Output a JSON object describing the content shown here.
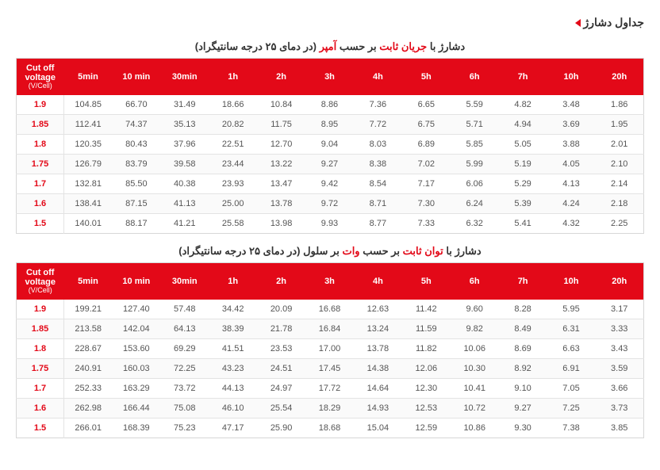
{
  "page_title": "جداول دشارژ",
  "caption1_parts": {
    "p1": "دشارژ با ",
    "p2": "جریان ثابت",
    "p3": " بر حسب ",
    "p4": "آمپر",
    "p5": "  (در دمای ۲۵ درجه سانتیگراد)"
  },
  "caption2_parts": {
    "p1": "دشارژ با ",
    "p2": "توان ثابت",
    "p3": " بر حسب ",
    "p4": "وات",
    "p5": " بر سلول (در دمای ۲۵ درجه سانتیگراد)"
  },
  "header": {
    "first_line1": "Cut off",
    "first_line2": "voltage",
    "first_sub": "(V/Cell)",
    "cols": [
      "5min",
      "10 min",
      "30min",
      "1h",
      "2h",
      "3h",
      "4h",
      "5h",
      "6h",
      "7h",
      "10h",
      "20h"
    ]
  },
  "table1_rows": [
    {
      "v": "1.9",
      "c": [
        "104.85",
        "66.70",
        "31.49",
        "18.66",
        "10.84",
        "8.86",
        "7.36",
        "6.65",
        "5.59",
        "4.82",
        "3.48",
        "1.86"
      ]
    },
    {
      "v": "1.85",
      "c": [
        "112.41",
        "74.37",
        "35.13",
        "20.82",
        "11.75",
        "8.95",
        "7.72",
        "6.75",
        "5.71",
        "4.94",
        "3.69",
        "1.95"
      ]
    },
    {
      "v": "1.8",
      "c": [
        "120.35",
        "80.43",
        "37.96",
        "22.51",
        "12.70",
        "9.04",
        "8.03",
        "6.89",
        "5.85",
        "5.05",
        "3.88",
        "2.01"
      ]
    },
    {
      "v": "1.75",
      "c": [
        "126.79",
        "83.79",
        "39.58",
        "23.44",
        "13.22",
        "9.27",
        "8.38",
        "7.02",
        "5.99",
        "5.19",
        "4.05",
        "2.10"
      ]
    },
    {
      "v": "1.7",
      "c": [
        "132.81",
        "85.50",
        "40.38",
        "23.93",
        "13.47",
        "9.42",
        "8.54",
        "7.17",
        "6.06",
        "5.29",
        "4.13",
        "2.14"
      ]
    },
    {
      "v": "1.6",
      "c": [
        "138.41",
        "87.15",
        "41.13",
        "25.00",
        "13.78",
        "9.72",
        "8.71",
        "7.30",
        "6.24",
        "5.39",
        "4.24",
        "2.18"
      ]
    },
    {
      "v": "1.5",
      "c": [
        "140.01",
        "88.17",
        "41.21",
        "25.58",
        "13.98",
        "9.93",
        "8.77",
        "7.33",
        "6.32",
        "5.41",
        "4.32",
        "2.25"
      ]
    }
  ],
  "table2_rows": [
    {
      "v": "1.9",
      "c": [
        "199.21",
        "127.40",
        "57.48",
        "34.42",
        "20.09",
        "16.68",
        "12.63",
        "11.42",
        "9.60",
        "8.28",
        "5.95",
        "3.17"
      ]
    },
    {
      "v": "1.85",
      "c": [
        "213.58",
        "142.04",
        "64.13",
        "38.39",
        "21.78",
        "16.84",
        "13.24",
        "11.59",
        "9.82",
        "8.49",
        "6.31",
        "3.33"
      ]
    },
    {
      "v": "1.8",
      "c": [
        "228.67",
        "153.60",
        "69.29",
        "41.51",
        "23.53",
        "17.00",
        "13.78",
        "11.82",
        "10.06",
        "8.69",
        "6.63",
        "3.43"
      ]
    },
    {
      "v": "1.75",
      "c": [
        "240.91",
        "160.03",
        "72.25",
        "43.23",
        "24.51",
        "17.45",
        "14.38",
        "12.06",
        "10.30",
        "8.92",
        "6.91",
        "3.59"
      ]
    },
    {
      "v": "1.7",
      "c": [
        "252.33",
        "163.29",
        "73.72",
        "44.13",
        "24.97",
        "17.72",
        "14.64",
        "12.30",
        "10.41",
        "9.10",
        "7.05",
        "3.66"
      ]
    },
    {
      "v": "1.6",
      "c": [
        "262.98",
        "166.44",
        "75.08",
        "46.10",
        "25.54",
        "18.29",
        "14.93",
        "12.53",
        "10.72",
        "9.27",
        "7.25",
        "3.73"
      ]
    },
    {
      "v": "1.5",
      "c": [
        "266.01",
        "168.39",
        "75.23",
        "47.17",
        "25.90",
        "18.68",
        "15.04",
        "12.59",
        "10.86",
        "9.30",
        "7.38",
        "3.85"
      ]
    }
  ]
}
